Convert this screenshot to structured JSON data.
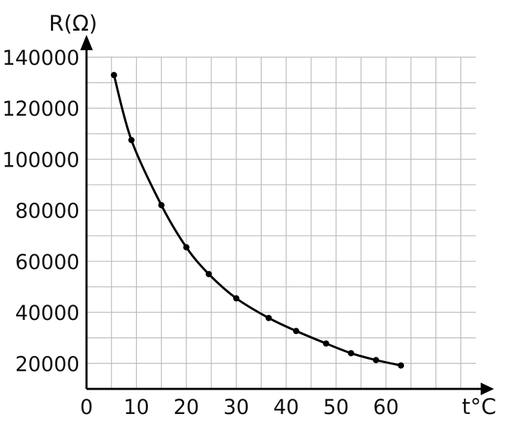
{
  "chart_data": {
    "type": "line",
    "title": "",
    "xlabel": "t°C",
    "ylabel": "R(Ω)",
    "xlim": [
      0,
      78
    ],
    "ylim": [
      10000,
      140000
    ],
    "x_tick_labels": [
      "0",
      "10",
      "20",
      "30",
      "40",
      "50",
      "60"
    ],
    "y_tick_labels": [
      "20000",
      "40000",
      "60000",
      "80000",
      "100000",
      "120000",
      "140000"
    ],
    "grid": true,
    "series": [
      {
        "name": "",
        "color": "#000000",
        "points": [
          {
            "x": 5.5,
            "y": 133000
          },
          {
            "x": 9,
            "y": 107500
          },
          {
            "x": 15,
            "y": 82000
          },
          {
            "x": 20,
            "y": 65500
          },
          {
            "x": 24.5,
            "y": 55000
          },
          {
            "x": 30,
            "y": 45500
          },
          {
            "x": 36.5,
            "y": 37800
          },
          {
            "x": 42,
            "y": 32700
          },
          {
            "x": 48,
            "y": 27800
          },
          {
            "x": 53,
            "y": 24000
          },
          {
            "x": 58,
            "y": 21300
          },
          {
            "x": 63,
            "y": 19200
          }
        ]
      }
    ]
  }
}
